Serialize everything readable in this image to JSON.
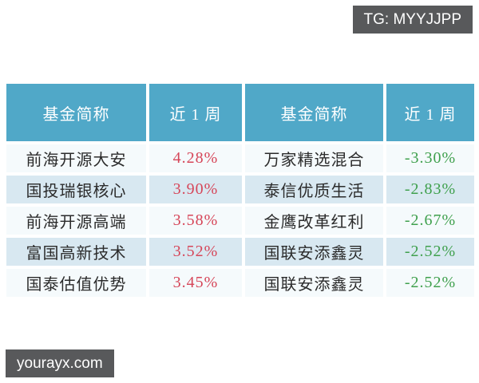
{
  "badges": {
    "tg": "TG: MYYJJPP",
    "site": "yourayx.com"
  },
  "chart_data": {
    "type": "table",
    "title": "",
    "columns": [
      "基金简称",
      "近 1 周",
      "基金简称",
      "近 1 周"
    ],
    "rows": [
      [
        "前海开源大安",
        "4.28%",
        "万家精选混合",
        "-3.30%"
      ],
      [
        "国投瑞银核心",
        "3.90%",
        "泰信优质生活",
        "-2.83%"
      ],
      [
        "前海开源高端",
        "3.58%",
        "金鹰改革红利",
        "-2.67%"
      ],
      [
        "富国高新技术",
        "3.52%",
        "国联安添鑫灵",
        "-2.52%"
      ],
      [
        "国泰估值优势",
        "3.45%",
        "国联安添鑫灵",
        "-2.52%"
      ]
    ],
    "value_semantics": {
      "positive_color_meaning": "weekly gain (red)",
      "negative_color_meaning": "weekly loss (green)"
    }
  },
  "colors": {
    "header-bg": "#50A8C8",
    "row-odd": "#F5FAFC",
    "row-even": "#D8E8F1",
    "positive": "#D64659",
    "negative": "#3FA04D",
    "badge-bg": "#58595B",
    "text": "#2B2B2B"
  }
}
